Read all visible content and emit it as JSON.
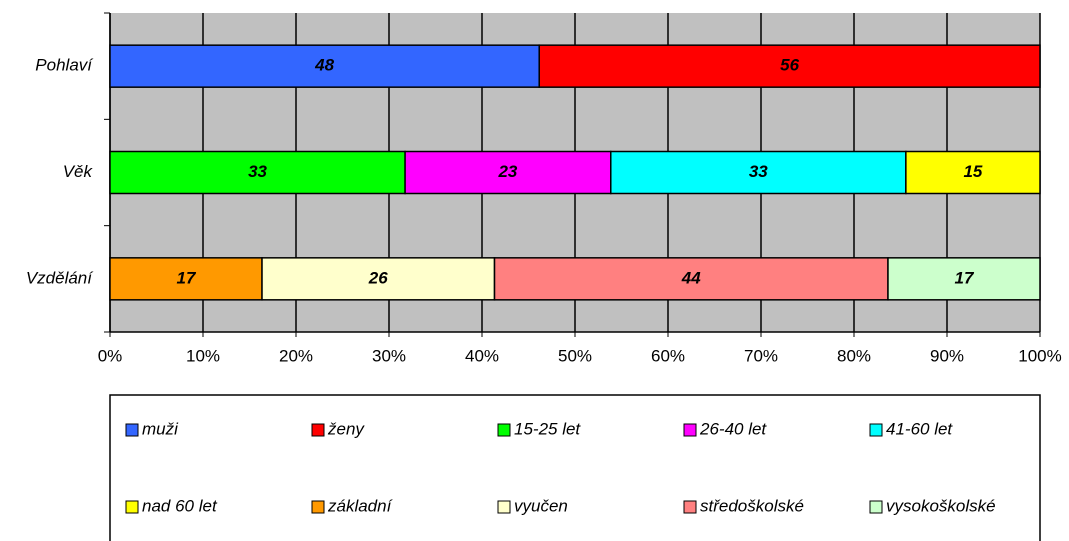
{
  "chart_data": {
    "type": "bar100_horizontal",
    "categories": [
      "Pohlaví",
      "Věk",
      "Vzdělání"
    ],
    "series": [
      {
        "name": "muži",
        "color": "#3366ff",
        "values": [
          48,
          null,
          null
        ]
      },
      {
        "name": "ženy",
        "color": "#ff0000",
        "values": [
          56,
          null,
          null
        ]
      },
      {
        "name": "15-25 let",
        "color": "#00ff00",
        "values": [
          null,
          33,
          null
        ]
      },
      {
        "name": "26-40 let",
        "color": "#ff00ff",
        "values": [
          null,
          23,
          null
        ]
      },
      {
        "name": "41-60 let",
        "color": "#00ffff",
        "values": [
          null,
          33,
          null
        ]
      },
      {
        "name": "nad 60 let",
        "color": "#ffff00",
        "values": [
          null,
          15,
          null
        ]
      },
      {
        "name": "základní",
        "color": "#ff9900",
        "values": [
          null,
          null,
          17
        ]
      },
      {
        "name": "vyučen",
        "color": "#ffffcc",
        "values": [
          null,
          null,
          26
        ]
      },
      {
        "name": "středoškolské",
        "color": "#ff8080",
        "values": [
          null,
          null,
          44
        ]
      },
      {
        "name": "vysokoškolské",
        "color": "#ccffcc",
        "values": [
          null,
          null,
          17
        ]
      }
    ],
    "xlim": [
      0,
      100
    ],
    "xticks": [
      {
        "value": 0,
        "label": "0%"
      },
      {
        "value": 10,
        "label": "10%"
      },
      {
        "value": 20,
        "label": "20%"
      },
      {
        "value": 30,
        "label": "30%"
      },
      {
        "value": 40,
        "label": "40%"
      },
      {
        "value": 50,
        "label": "50%"
      },
      {
        "value": 60,
        "label": "60%"
      },
      {
        "value": 70,
        "label": "70%"
      },
      {
        "value": 80,
        "label": "80%"
      },
      {
        "value": 90,
        "label": "90%"
      },
      {
        "value": 100,
        "label": "100%"
      }
    ],
    "grid": true,
    "legend": "bottom"
  }
}
